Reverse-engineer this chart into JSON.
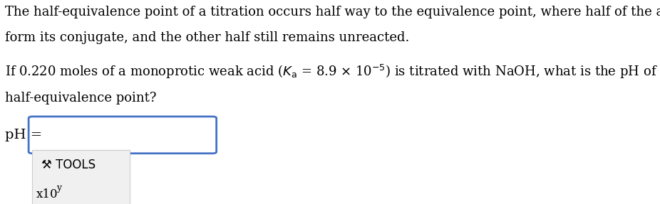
{
  "background_color": "#ffffff",
  "text_color": "#000000",
  "line1": "The half-equivalence point of a titration occurs half way to the equivalence point, where half of the analyte has reacted to",
  "line2": "form its conjugate, and the other half still remains unreacted.",
  "line3_parts": [
    {
      "text": "If 0.220 moles of a monoprotic weak acid (",
      "style": "normal"
    },
    {
      "text": "K",
      "style": "italic"
    },
    {
      "text": "a",
      "style": "subscript"
    },
    {
      "text": " = 8.9 × 10",
      "style": "normal"
    },
    {
      "text": "−5",
      "style": "superscript"
    },
    {
      "text": ") is titrated with NaOH, what is the pH of the solution at the",
      "style": "normal"
    }
  ],
  "line4": "half-equivalence point?",
  "ph_label": "pH =",
  "tools_label": "⚒ TOOLS",
  "x10_label": "x10",
  "input_box_color": "#4472c4",
  "input_box_fill": "#ffffff",
  "tools_panel_fill": "#f0f0f0",
  "font_size": 13,
  "font_family": "serif"
}
